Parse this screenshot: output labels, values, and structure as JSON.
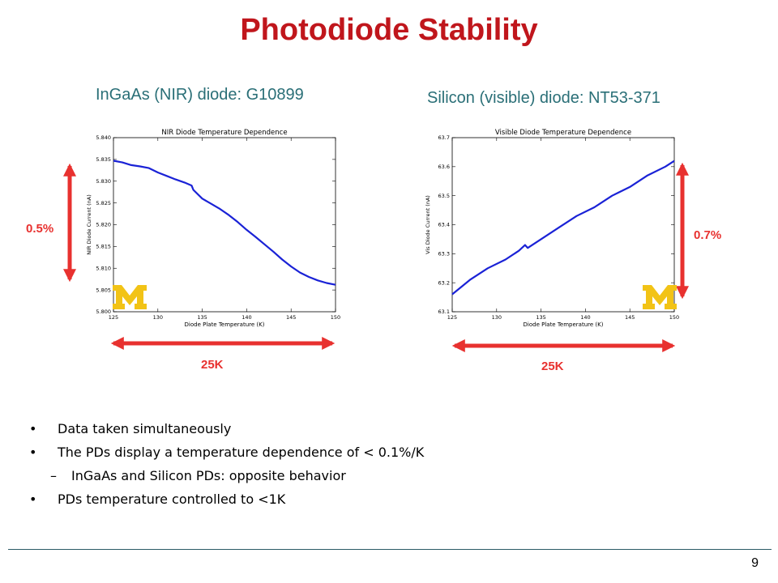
{
  "slide": {
    "title": "Photodiode Stability",
    "page_number": "9"
  },
  "left_panel": {
    "subtitle": "InGaAs (NIR) diode: G10899",
    "vertical_arrow_label": "0.5%",
    "horizontal_arrow_label": "25K"
  },
  "right_panel": {
    "subtitle": "Silicon (visible) diode: NT53-371",
    "vertical_arrow_label": "0.7%",
    "horizontal_arrow_label": "25K"
  },
  "bullets": [
    {
      "text": "Data taken simultaneously",
      "level": 1
    },
    {
      "text": "The PDs display a temperature dependence of < 0.1%/K",
      "level": 1
    },
    {
      "text": "InGaAs and Silicon PDs: opposite behavior",
      "level": 2
    },
    {
      "text": "PDs temperature controlled to <1K",
      "level": 1
    }
  ],
  "colors": {
    "title": "#c0161c",
    "subtitle": "#2a6f77",
    "arrow": "#e8312f",
    "line": "#1a22d6",
    "logo": "#f2c316"
  },
  "chart_data": [
    {
      "type": "line",
      "title": "NIR Diode Temperature Dependence",
      "xlabel": "Diode Plate Temperature (K)",
      "ylabel": "NIR Diode Current (nA)",
      "xlim": [
        125,
        150
      ],
      "ylim": [
        5.8,
        5.84
      ],
      "xticks": [
        "125",
        "130",
        "135",
        "140",
        "145",
        "150"
      ],
      "yticks": [
        "5.800",
        "5.805",
        "5.810",
        "5.815",
        "5.820",
        "5.825",
        "5.830",
        "5.835",
        "5.840"
      ],
      "x": [
        125,
        126,
        127,
        128,
        129,
        130,
        131,
        132,
        133,
        133.8,
        134,
        135,
        136,
        137,
        138,
        139,
        140,
        141,
        142,
        143,
        144,
        145,
        146,
        147,
        148,
        149,
        150
      ],
      "y": [
        5.8347,
        5.8343,
        5.8337,
        5.8334,
        5.833,
        5.832,
        5.8312,
        5.8304,
        5.8297,
        5.829,
        5.828,
        5.826,
        5.8248,
        5.8236,
        5.8222,
        5.8206,
        5.8188,
        5.8172,
        5.8155,
        5.8138,
        5.812,
        5.8104,
        5.809,
        5.808,
        5.8072,
        5.8066,
        5.8062
      ],
      "grid": false
    },
    {
      "type": "line",
      "title": "Visible Diode Temperature Dependence",
      "xlabel": "Diode Plate Temperature (K)",
      "ylabel": "Vis Diode Current (nA)",
      "xlim": [
        125,
        150
      ],
      "ylim": [
        63.1,
        63.7
      ],
      "xticks": [
        "125",
        "130",
        "135",
        "140",
        "145",
        "150"
      ],
      "yticks": [
        "63.1",
        "63.2",
        "63.3",
        "63.4",
        "63.5",
        "63.6",
        "63.7"
      ],
      "x": [
        125,
        127,
        129,
        131,
        132.5,
        133.2,
        133.5,
        135,
        137,
        139,
        141,
        143,
        145,
        147,
        149,
        150
      ],
      "y": [
        63.16,
        63.21,
        63.25,
        63.28,
        63.31,
        63.33,
        63.32,
        63.35,
        63.39,
        63.43,
        63.46,
        63.5,
        63.53,
        63.57,
        63.6,
        63.62
      ],
      "grid": false
    }
  ]
}
